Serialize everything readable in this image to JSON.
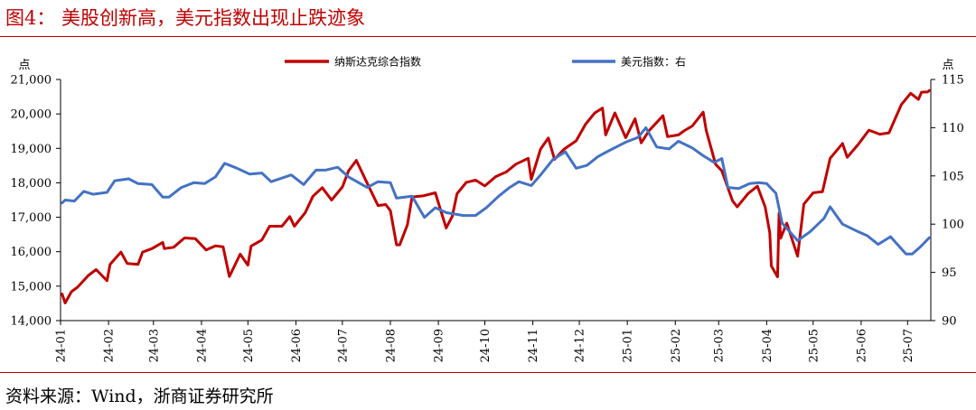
{
  "figure": {
    "title": "图4： 美股创新高，美元指数出现止跌迹象",
    "source": "资料来源：Wind，浙商证券研究所"
  },
  "colors": {
    "accent": "#c00000",
    "nasdaq": "#c00000",
    "dxy": "#4472c4"
  },
  "chart_data": {
    "type": "line",
    "title": "",
    "left_unit": "点",
    "right_unit": "点",
    "x_ticks": [
      "24-01",
      "24-02",
      "24-03",
      "24-04",
      "24-05",
      "24-06",
      "24-07",
      "24-08",
      "24-09",
      "24-10",
      "24-11",
      "24-12",
      "25-01",
      "25-02",
      "25-03",
      "25-04",
      "25-05",
      "25-06",
      "25-07"
    ],
    "y_left": {
      "min": 14000,
      "max": 21000,
      "ticks": [
        "14,000",
        "15,000",
        "16,000",
        "17,000",
        "18,000",
        "19,000",
        "20,000",
        "21,000"
      ]
    },
    "y_right": {
      "min": 90,
      "max": 115,
      "ticks": [
        "90",
        "95",
        "100",
        "105",
        "110",
        "115"
      ]
    },
    "grid": false,
    "legend_position": "top",
    "series": [
      {
        "name": "纳斯达克综合指数",
        "axis": "left",
        "color": "#c00000",
        "points": [
          [
            "2024-01-02",
            14770
          ],
          [
            "2024-01-04",
            14510
          ],
          [
            "2024-01-08",
            14840
          ],
          [
            "2024-01-12",
            14970
          ],
          [
            "2024-01-19",
            15310
          ],
          [
            "2024-01-24",
            15480
          ],
          [
            "2024-01-31",
            15160
          ],
          [
            "2024-02-02",
            15630
          ],
          [
            "2024-02-09",
            15990
          ],
          [
            "2024-02-13",
            15660
          ],
          [
            "2024-02-20",
            15630
          ],
          [
            "2024-02-23",
            15990
          ],
          [
            "2024-02-29",
            16090
          ],
          [
            "2024-03-07",
            16270
          ],
          [
            "2024-03-08",
            16090
          ],
          [
            "2024-03-14",
            16130
          ],
          [
            "2024-03-21",
            16400
          ],
          [
            "2024-03-28",
            16380
          ],
          [
            "2024-04-04",
            16050
          ],
          [
            "2024-04-10",
            16170
          ],
          [
            "2024-04-15",
            16140
          ],
          [
            "2024-04-19",
            15280
          ],
          [
            "2024-04-26",
            15930
          ],
          [
            "2024-05-01",
            15610
          ],
          [
            "2024-05-03",
            16160
          ],
          [
            "2024-05-10",
            16340
          ],
          [
            "2024-05-15",
            16740
          ],
          [
            "2024-05-23",
            16740
          ],
          [
            "2024-05-28",
            17020
          ],
          [
            "2024-05-31",
            16740
          ],
          [
            "2024-06-07",
            17130
          ],
          [
            "2024-06-12",
            17610
          ],
          [
            "2024-06-18",
            17860
          ],
          [
            "2024-06-24",
            17500
          ],
          [
            "2024-07-01",
            17880
          ],
          [
            "2024-07-05",
            18350
          ],
          [
            "2024-07-10",
            18650
          ],
          [
            "2024-07-17",
            17990
          ],
          [
            "2024-07-24",
            17340
          ],
          [
            "2024-07-29",
            17370
          ],
          [
            "2024-08-01",
            17190
          ],
          [
            "2024-08-05",
            16200
          ],
          [
            "2024-08-07",
            16200
          ],
          [
            "2024-08-12",
            16780
          ],
          [
            "2024-08-15",
            17590
          ],
          [
            "2024-08-22",
            17620
          ],
          [
            "2024-08-30",
            17710
          ],
          [
            "2024-09-06",
            16690
          ],
          [
            "2024-09-10",
            17030
          ],
          [
            "2024-09-13",
            17680
          ],
          [
            "2024-09-19",
            18010
          ],
          [
            "2024-09-25",
            18080
          ],
          [
            "2024-10-01",
            17910
          ],
          [
            "2024-10-08",
            18180
          ],
          [
            "2024-10-15",
            18320
          ],
          [
            "2024-10-21",
            18540
          ],
          [
            "2024-10-29",
            18710
          ],
          [
            "2024-10-31",
            18100
          ],
          [
            "2024-11-06",
            18980
          ],
          [
            "2024-11-11",
            19300
          ],
          [
            "2024-11-15",
            18680
          ],
          [
            "2024-11-21",
            18970
          ],
          [
            "2024-11-29",
            19220
          ],
          [
            "2024-12-05",
            19700
          ],
          [
            "2024-12-11",
            20030
          ],
          [
            "2024-12-16",
            20170
          ],
          [
            "2024-12-18",
            19390
          ],
          [
            "2024-12-24",
            20030
          ],
          [
            "2024-12-31",
            19310
          ],
          [
            "2025-01-06",
            19860
          ],
          [
            "2025-01-10",
            19160
          ],
          [
            "2025-01-15",
            19510
          ],
          [
            "2025-01-24",
            19950
          ],
          [
            "2025-01-27",
            19340
          ],
          [
            "2025-02-03",
            19390
          ],
          [
            "2025-02-07",
            19520
          ],
          [
            "2025-02-12",
            19650
          ],
          [
            "2025-02-19",
            20050
          ],
          [
            "2025-02-21",
            19520
          ],
          [
            "2025-02-27",
            18540
          ],
          [
            "2025-03-03",
            18350
          ],
          [
            "2025-03-10",
            17470
          ],
          [
            "2025-03-13",
            17300
          ],
          [
            "2025-03-20",
            17690
          ],
          [
            "2025-03-26",
            17900
          ],
          [
            "2025-03-31",
            17300
          ],
          [
            "2025-04-03",
            16550
          ],
          [
            "2025-04-04",
            15590
          ],
          [
            "2025-04-08",
            15270
          ],
          [
            "2025-04-09",
            17120
          ],
          [
            "2025-04-10",
            16390
          ],
          [
            "2025-04-14",
            16830
          ],
          [
            "2025-04-21",
            15870
          ],
          [
            "2025-04-25",
            17380
          ],
          [
            "2025-05-01",
            17710
          ],
          [
            "2025-05-07",
            17740
          ],
          [
            "2025-05-12",
            18710
          ],
          [
            "2025-05-20",
            19140
          ],
          [
            "2025-05-23",
            18740
          ],
          [
            "2025-05-30",
            19110
          ],
          [
            "2025-06-06",
            19530
          ],
          [
            "2025-06-13",
            19410
          ],
          [
            "2025-06-19",
            19450
          ],
          [
            "2025-06-27",
            20270
          ],
          [
            "2025-07-03",
            20600
          ],
          [
            "2025-07-08",
            20420
          ],
          [
            "2025-07-10",
            20630
          ],
          [
            "2025-07-14",
            20640
          ],
          [
            "2025-07-15",
            20680
          ]
        ]
      },
      {
        "name": "美元指数：右",
        "axis": "right",
        "color": "#4472c4",
        "points": [
          [
            "2024-01-02",
            102.2
          ],
          [
            "2024-01-04",
            102.5
          ],
          [
            "2024-01-10",
            102.4
          ],
          [
            "2024-01-16",
            103.4
          ],
          [
            "2024-01-22",
            103.1
          ],
          [
            "2024-01-31",
            103.3
          ],
          [
            "2024-02-05",
            104.5
          ],
          [
            "2024-02-14",
            104.7
          ],
          [
            "2024-02-20",
            104.2
          ],
          [
            "2024-02-29",
            104.1
          ],
          [
            "2024-03-07",
            102.8
          ],
          [
            "2024-03-11",
            102.8
          ],
          [
            "2024-03-19",
            103.8
          ],
          [
            "2024-03-27",
            104.3
          ],
          [
            "2024-04-03",
            104.2
          ],
          [
            "2024-04-10",
            104.9
          ],
          [
            "2024-04-16",
            106.3
          ],
          [
            "2024-04-24",
            105.8
          ],
          [
            "2024-05-02",
            105.2
          ],
          [
            "2024-05-10",
            105.3
          ],
          [
            "2024-05-16",
            104.4
          ],
          [
            "2024-05-29",
            105.1
          ],
          [
            "2024-06-06",
            104.1
          ],
          [
            "2024-06-14",
            105.6
          ],
          [
            "2024-06-20",
            105.6
          ],
          [
            "2024-06-28",
            105.9
          ],
          [
            "2024-07-05",
            104.9
          ],
          [
            "2024-07-17",
            103.8
          ],
          [
            "2024-07-24",
            104.4
          ],
          [
            "2024-08-01",
            104.3
          ],
          [
            "2024-08-05",
            102.7
          ],
          [
            "2024-08-15",
            102.9
          ],
          [
            "2024-08-23",
            100.7
          ],
          [
            "2024-08-30",
            101.7
          ],
          [
            "2024-09-06",
            101.2
          ],
          [
            "2024-09-17",
            100.9
          ],
          [
            "2024-09-25",
            100.9
          ],
          [
            "2024-10-02",
            101.7
          ],
          [
            "2024-10-10",
            102.9
          ],
          [
            "2024-10-17",
            103.8
          ],
          [
            "2024-10-23",
            104.4
          ],
          [
            "2024-10-31",
            104.0
          ],
          [
            "2024-11-06",
            105.1
          ],
          [
            "2024-11-14",
            106.7
          ],
          [
            "2024-11-22",
            107.5
          ],
          [
            "2024-11-29",
            105.8
          ],
          [
            "2024-12-06",
            106.1
          ],
          [
            "2024-12-13",
            107.0
          ],
          [
            "2024-12-20",
            107.6
          ],
          [
            "2024-12-31",
            108.5
          ],
          [
            "2025-01-08",
            109.0
          ],
          [
            "2025-01-13",
            110.0
          ],
          [
            "2025-01-20",
            108.0
          ],
          [
            "2025-01-28",
            107.8
          ],
          [
            "2025-02-03",
            108.6
          ],
          [
            "2025-02-12",
            107.9
          ],
          [
            "2025-02-19",
            107.1
          ],
          [
            "2025-02-26",
            106.4
          ],
          [
            "2025-03-03",
            106.8
          ],
          [
            "2025-03-07",
            103.8
          ],
          [
            "2025-03-14",
            103.7
          ],
          [
            "2025-03-21",
            104.2
          ],
          [
            "2025-03-27",
            104.3
          ],
          [
            "2025-04-01",
            104.2
          ],
          [
            "2025-04-07",
            103.2
          ],
          [
            "2025-04-11",
            100.1
          ],
          [
            "2025-04-21",
            98.3
          ],
          [
            "2025-04-29",
            99.2
          ],
          [
            "2025-05-08",
            100.6
          ],
          [
            "2025-05-12",
            101.8
          ],
          [
            "2025-05-20",
            100.0
          ],
          [
            "2025-05-29",
            99.3
          ],
          [
            "2025-06-05",
            98.8
          ],
          [
            "2025-06-12",
            97.9
          ],
          [
            "2025-06-20",
            98.7
          ],
          [
            "2025-06-30",
            96.9
          ],
          [
            "2025-07-04",
            96.9
          ],
          [
            "2025-07-09",
            97.6
          ],
          [
            "2025-07-15",
            98.6
          ]
        ]
      }
    ]
  }
}
